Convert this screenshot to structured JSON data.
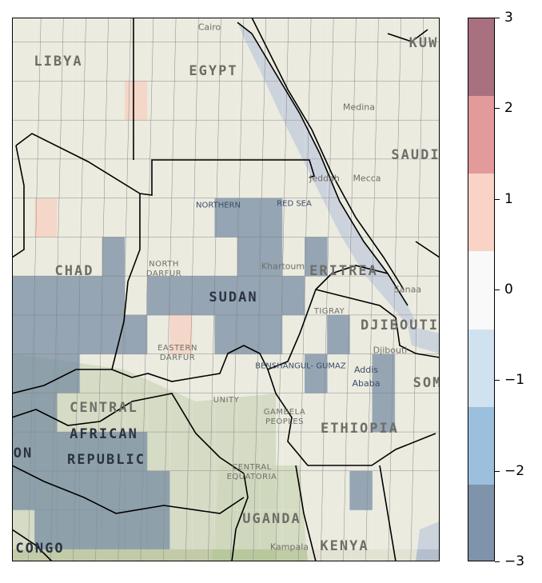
{
  "map": {
    "country_labels": [
      "LIBYA",
      "EGYPT",
      "KUW",
      "SAUDI",
      "CHAD",
      "SUDAN",
      "ERITREA",
      "DJIBOUTI",
      "SOM",
      "CENTRAL",
      "AFRICAN",
      "REPUBLIC",
      "ETHIOPIA",
      "ON",
      "CONGO",
      "UGANDA",
      "KENYA"
    ],
    "region_labels": [
      "NORTHERN",
      "RED SEA",
      "NORTH\nDARFUR",
      "EASTERN\nDARFUR",
      "TIGRAY",
      "BENSHANGUL-\nGUMAZ",
      "UNITY",
      "GAMBELA\nPEOPLES",
      "CENTRAL\nEQUATORIA"
    ],
    "city_labels": [
      "Cairo",
      "Medina",
      "Jeddah",
      "Mecca",
      "Khartoum",
      "Sanaa",
      "Djibouti",
      "Addis\nAbaba",
      "Kampala"
    ],
    "anomaly_grid": {
      "cell_deg": 1,
      "rows": [
        [
          0,
          0,
          0,
          0,
          0,
          0,
          0,
          0,
          0,
          0,
          0,
          0,
          0,
          0,
          0,
          0,
          0,
          0,
          0
        ],
        [
          0,
          0,
          0,
          0,
          0,
          0,
          0,
          0,
          0,
          0,
          0,
          0,
          0,
          0,
          0,
          0,
          0,
          0,
          0
        ],
        [
          0,
          0,
          0,
          0,
          0,
          1,
          0,
          0,
          0,
          0,
          0,
          0,
          0,
          0,
          0,
          0,
          0,
          0,
          0
        ],
        [
          0,
          0,
          0,
          0,
          0,
          0,
          0,
          0,
          0,
          0,
          0,
          0,
          0,
          0,
          0,
          0,
          0,
          0,
          0
        ],
        [
          0,
          0,
          0,
          0,
          0,
          0,
          0,
          0,
          0,
          0,
          0,
          0,
          0,
          0,
          0,
          0,
          0,
          0,
          0
        ],
        [
          0,
          1,
          0,
          0,
          0,
          0,
          0,
          0,
          0,
          -3,
          -3,
          -3,
          0,
          0,
          0,
          0,
          0,
          0,
          0
        ],
        [
          0,
          0,
          0,
          0,
          -3,
          0,
          0,
          0,
          0,
          0,
          -3,
          -3,
          0,
          -3,
          0,
          0,
          0,
          0,
          0
        ],
        [
          -3,
          -3,
          -3,
          -3,
          -3,
          0,
          -3,
          -3,
          -3,
          -3,
          -3,
          -3,
          -3,
          0,
          0,
          0,
          0,
          0,
          0
        ],
        [
          -3,
          -3,
          -3,
          -3,
          -3,
          -3,
          0,
          1,
          0,
          -3,
          -3,
          -3,
          0,
          0,
          -3,
          0,
          0,
          0,
          0
        ],
        [
          -3,
          -3,
          -3,
          0,
          0,
          0,
          0,
          0,
          0,
          0,
          0,
          0,
          0,
          -3,
          0,
          0,
          -3,
          0,
          0
        ],
        [
          -3,
          -3,
          0,
          0,
          0,
          0,
          0,
          0,
          0,
          0,
          0,
          0,
          0,
          0,
          0,
          0,
          -3,
          0,
          0
        ],
        [
          -3,
          -3,
          -3,
          -3,
          -3,
          -3,
          0,
          0,
          0,
          0,
          0,
          0,
          0,
          0,
          0,
          0,
          0,
          0,
          0
        ],
        [
          -3,
          -3,
          -3,
          -3,
          -3,
          -3,
          -3,
          0,
          0,
          0,
          0,
          0,
          0,
          0,
          0,
          -3,
          0,
          0,
          0
        ],
        [
          0,
          -3,
          -3,
          -3,
          -3,
          -3,
          -3,
          0,
          0,
          0,
          0,
          0,
          0,
          0,
          0,
          0,
          0,
          0,
          0
        ]
      ]
    }
  },
  "colorbar": {
    "ticks": [
      "3",
      "2",
      "1",
      "0",
      "−1",
      "−2",
      "−3"
    ],
    "min": -3,
    "max": 3,
    "colors": [
      "#a9717f",
      "#e39a9a",
      "#f9d3c5",
      "#f9f9f9",
      "#d0e2f0",
      "#9bc0de",
      "#7f93aa"
    ]
  }
}
